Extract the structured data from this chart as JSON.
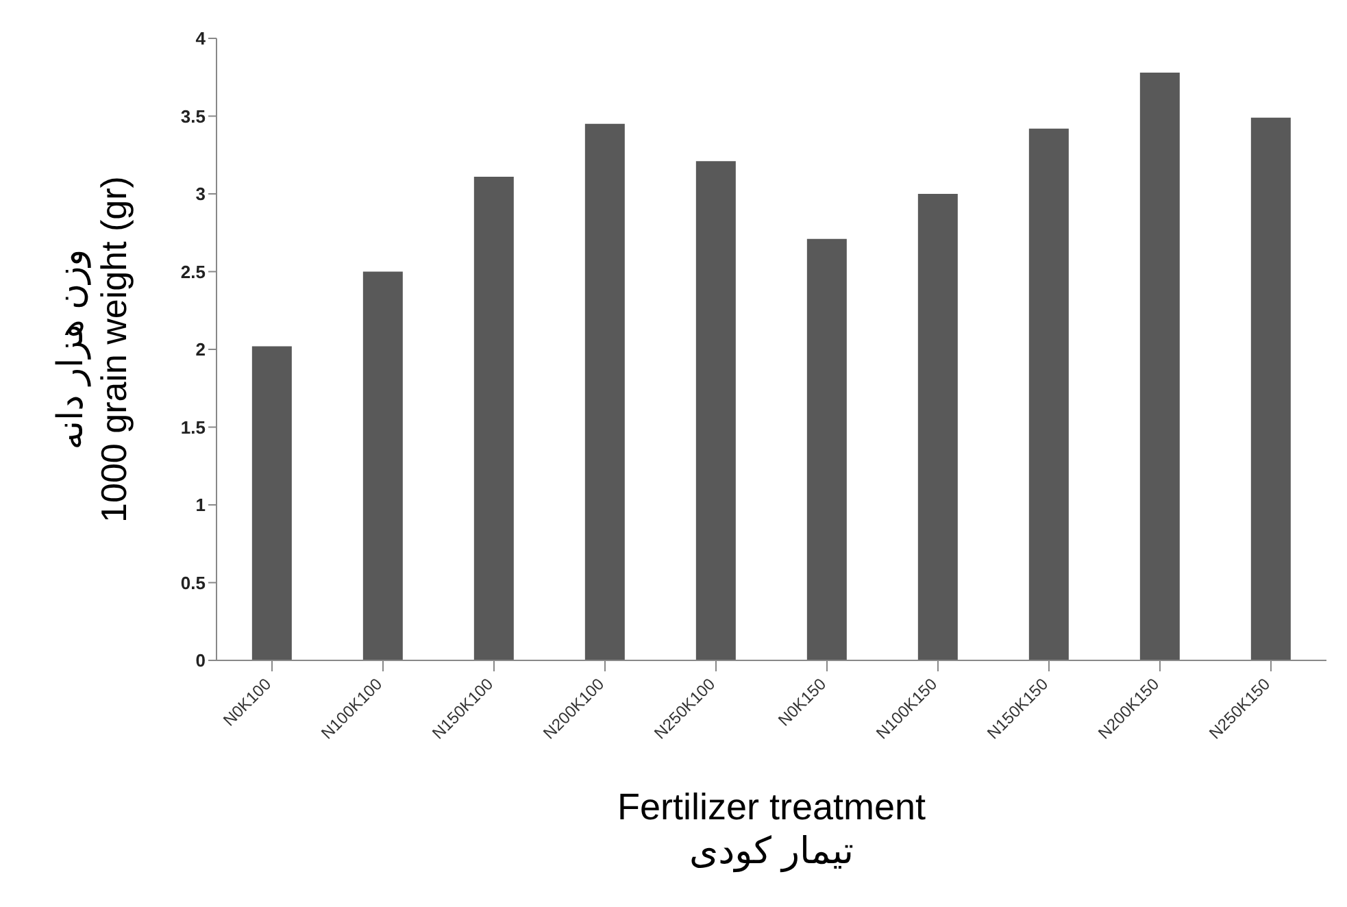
{
  "chart_data": {
    "type": "bar",
    "xlabel": "Fertilizer treatment\nتیمار کودی",
    "ylabel": "وزن هزار دانه\n1000 grain weight (gr)",
    "categories": [
      "N0K100",
      "N100K100",
      "N150K100",
      "N200K100",
      "N250K100",
      "N0K150",
      "N100K150",
      "N150K150",
      "N200K150",
      "N250K150"
    ],
    "values": [
      2.02,
      2.5,
      3.11,
      3.45,
      3.21,
      2.71,
      3.0,
      3.42,
      3.78,
      3.49
    ],
    "color": "#595959",
    "ylim": [
      0,
      4
    ],
    "yticks": [
      0,
      0.5,
      1,
      1.5,
      2,
      2.5,
      3,
      3.5,
      4
    ],
    "grid": false,
    "legend": false
  }
}
